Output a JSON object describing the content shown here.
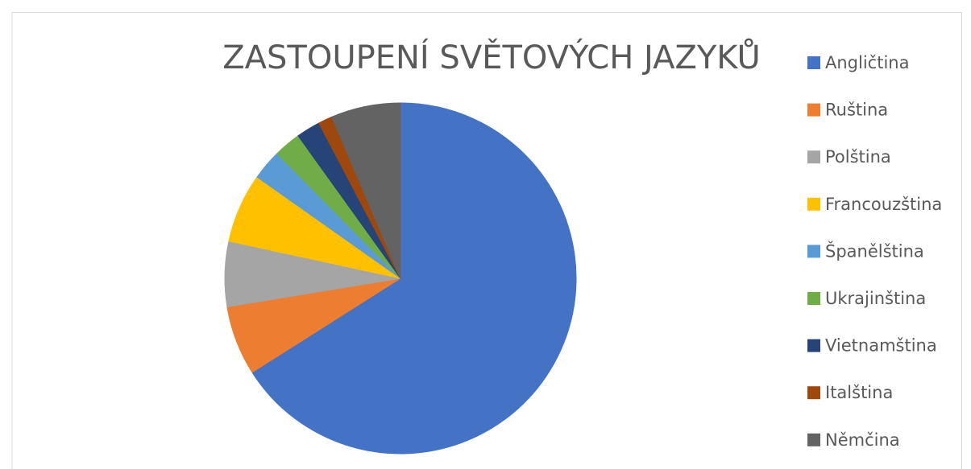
{
  "chart_data": {
    "type": "pie",
    "title": "ZASTOUPENÍ SVĚTOVÝCH JAZYKŮ",
    "categories": [
      "Angličtina",
      "Ruština",
      "Polština",
      "Francouzština",
      "Španělština",
      "Ukrajinština",
      "Vietnamština",
      "Italština",
      "Němčina"
    ],
    "values": [
      66,
      6.4,
      6,
      6.4,
      2.8,
      2.5,
      2.2,
      1.3,
      6.4
    ],
    "colors": [
      "#4472c4",
      "#ed7d31",
      "#a5a5a5",
      "#ffc000",
      "#5b9bd5",
      "#70ad47",
      "#264478",
      "#9e480e",
      "#636363"
    ],
    "legend": "right"
  }
}
